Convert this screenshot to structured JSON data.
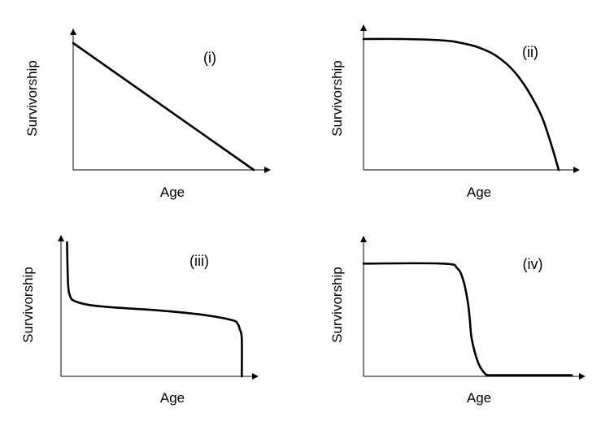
{
  "chart_data": [
    {
      "type": "line",
      "title": "",
      "panel_label": "(i)",
      "xlabel": "Age",
      "ylabel": "Survivorship",
      "xlim": [
        0,
        1
      ],
      "ylim": [
        0,
        1
      ],
      "grid": false,
      "series": [
        {
          "x": [
            0,
            1
          ],
          "y": [
            1,
            0
          ]
        }
      ]
    },
    {
      "type": "line",
      "title": "",
      "panel_label": "(ii)",
      "xlabel": "Age",
      "ylabel": "Survivorship",
      "xlim": [
        0,
        1
      ],
      "ylim": [
        0,
        1
      ],
      "grid": false,
      "series": [
        {
          "x": [
            0,
            0.2,
            0.4,
            0.5,
            0.6,
            0.7,
            0.8,
            0.9,
            0.95,
            1.0
          ],
          "y": [
            1,
            1,
            0.99,
            0.97,
            0.93,
            0.85,
            0.7,
            0.45,
            0.25,
            0
          ]
        }
      ]
    },
    {
      "type": "line",
      "title": "",
      "panel_label": "(iii)",
      "xlabel": "Age",
      "ylabel": "Survivorship",
      "xlim": [
        0,
        1
      ],
      "ylim": [
        0,
        1
      ],
      "grid": false,
      "series": [
        {
          "x": [
            0.03,
            0.035,
            0.045,
            0.07,
            0.15,
            0.3,
            0.5,
            0.7,
            0.85,
            0.88,
            0.89,
            0.9,
            0.9
          ],
          "y": [
            1,
            0.7,
            0.6,
            0.56,
            0.53,
            0.51,
            0.49,
            0.46,
            0.42,
            0.39,
            0.35,
            0.28,
            0
          ]
        }
      ]
    },
    {
      "type": "line",
      "title": "",
      "panel_label": "(iv)",
      "xlabel": "Age",
      "ylabel": "Survivorship",
      "xlim": [
        0,
        1
      ],
      "ylim": [
        0,
        1
      ],
      "grid": false,
      "series": [
        {
          "x": [
            0,
            0.38,
            0.45,
            0.48,
            0.5,
            0.51,
            0.52,
            0.55,
            0.58,
            0.6,
            0.63,
            1.0
          ],
          "y": [
            0.97,
            0.97,
            0.93,
            0.82,
            0.65,
            0.5,
            0.32,
            0.12,
            0.03,
            0.01,
            0.01,
            0.01
          ]
        }
      ]
    }
  ]
}
